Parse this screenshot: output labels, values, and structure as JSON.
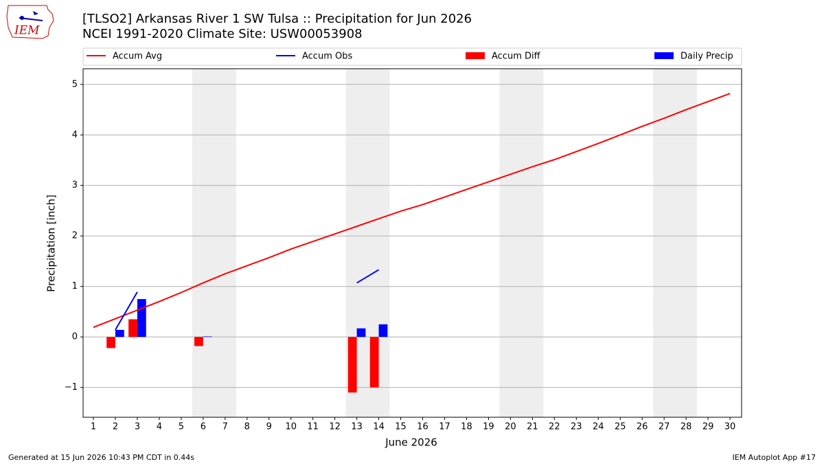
{
  "chart_data": {
    "type": "bar_line",
    "title": "[TLSO2] Arkansas River 1 SW Tulsa :: Precipitation for Jun 2026",
    "subtitle": "NCEI 1991-2020 Climate Site: USW00053908",
    "ylabel": "Precipitation [inch]",
    "xlabel": "June 2026",
    "x": [
      1,
      2,
      3,
      4,
      5,
      6,
      7,
      8,
      9,
      10,
      11,
      12,
      13,
      14,
      15,
      16,
      17,
      18,
      19,
      20,
      21,
      22,
      23,
      24,
      25,
      26,
      27,
      28,
      29,
      30
    ],
    "xlim": [
      0.53,
      30.53
    ],
    "xticks": [
      1,
      2,
      3,
      4,
      5,
      6,
      7,
      8,
      9,
      10,
      11,
      12,
      13,
      14,
      15,
      16,
      17,
      18,
      19,
      20,
      21,
      22,
      23,
      24,
      25,
      26,
      27,
      28,
      29,
      30
    ],
    "ylim": [
      -1.59,
      5.31
    ],
    "yticks": [
      {
        "value": -1,
        "label": "−1"
      },
      0,
      1,
      2,
      3,
      4,
      5
    ],
    "grid": true,
    "shaded_ranges": [
      [
        5.5,
        7.5
      ],
      [
        12.5,
        14.5
      ],
      [
        19.5,
        21.5
      ],
      [
        26.5,
        28.5
      ]
    ],
    "shade_color": "#eeeeee",
    "series": [
      {
        "name": "Accum Avg",
        "type": "line",
        "color": "#ff0000",
        "values": [
          0.19,
          0.36,
          0.53,
          0.7,
          0.88,
          1.07,
          1.25,
          1.41,
          1.57,
          1.74,
          1.89,
          2.04,
          2.19,
          2.34,
          2.49,
          2.62,
          2.77,
          2.92,
          3.07,
          3.22,
          3.37,
          3.51,
          3.67,
          3.83,
          4.0,
          4.17,
          4.33,
          4.5,
          4.66,
          4.82
        ]
      },
      {
        "name": "Accum Obs",
        "type": "line",
        "color": "#0000ff",
        "values": [
          null,
          0.14,
          0.89,
          null,
          null,
          null,
          null,
          null,
          null,
          null,
          null,
          null,
          1.07,
          1.33,
          null,
          null,
          null,
          null,
          null,
          null,
          null,
          null,
          null,
          null,
          null,
          null,
          null,
          null,
          null,
          null
        ]
      },
      {
        "name": "Accum Diff",
        "type": "bar",
        "color": "#ff0000",
        "offset": -0.2,
        "values": [
          null,
          -0.22,
          0.35,
          null,
          null,
          -0.18,
          null,
          null,
          null,
          null,
          null,
          null,
          -1.1,
          -1.0,
          null,
          null,
          null,
          null,
          null,
          null,
          null,
          null,
          null,
          null,
          null,
          null,
          null,
          null,
          null,
          null
        ]
      },
      {
        "name": "Daily Precip",
        "type": "bar",
        "color": "#0000ff",
        "offset": 0.2,
        "values": [
          null,
          0.14,
          0.75,
          null,
          null,
          0.01,
          null,
          null,
          null,
          null,
          null,
          null,
          0.17,
          0.25,
          null,
          null,
          null,
          null,
          null,
          null,
          null,
          null,
          null,
          null,
          null,
          null,
          null,
          null,
          null,
          null
        ]
      }
    ]
  },
  "logo_text": "IEM",
  "footer": {
    "left": "Generated at 15 Jun 2026 10:43 PM CDT in 0.44s",
    "right": "IEM Autoplot App #17"
  }
}
